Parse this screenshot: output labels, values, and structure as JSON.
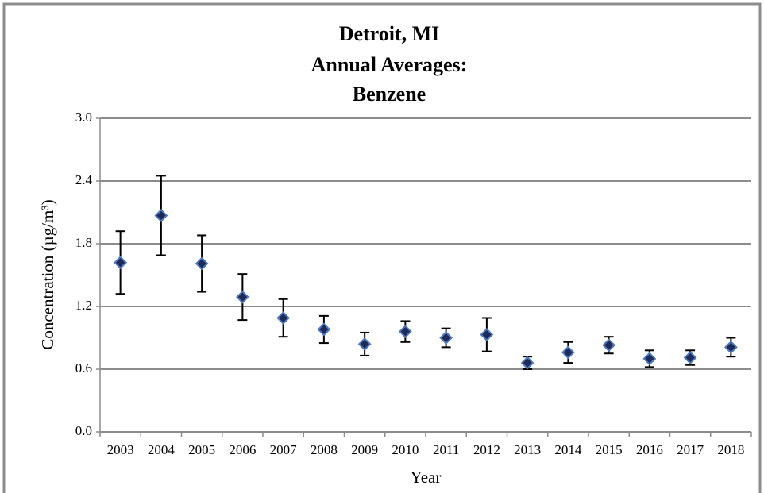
{
  "chart_data": {
    "type": "errorbar",
    "title": [
      "Detroit, MI",
      "Annual Averages:",
      "Benzene"
    ],
    "x_label": "Year",
    "y_label": "Concentration (µg/m³)",
    "categories": [
      "2003",
      "2004",
      "2005",
      "2006",
      "2007",
      "2008",
      "2009",
      "2010",
      "2011",
      "2012",
      "2013",
      "2014",
      "2015",
      "2016",
      "2017",
      "2018"
    ],
    "values": [
      1.62,
      2.07,
      1.61,
      1.29,
      1.09,
      0.98,
      0.84,
      0.96,
      0.9,
      0.93,
      0.66,
      0.76,
      0.83,
      0.7,
      0.71,
      0.81
    ],
    "errors": [
      0.3,
      0.38,
      0.27,
      0.22,
      0.18,
      0.13,
      0.11,
      0.1,
      0.09,
      0.16,
      0.06,
      0.1,
      0.08,
      0.08,
      0.07,
      0.09
    ],
    "color": "#1f2a55",
    "edge_color": "#4a78c8",
    "error_color": "#000000",
    "ylim": [
      0,
      3
    ],
    "yticks": [
      {
        "value": 0,
        "label": "0.0"
      },
      0.6,
      1.2,
      1.8,
      2.4,
      {
        "value": 3,
        "label": "3.0"
      }
    ],
    "grid": true
  }
}
